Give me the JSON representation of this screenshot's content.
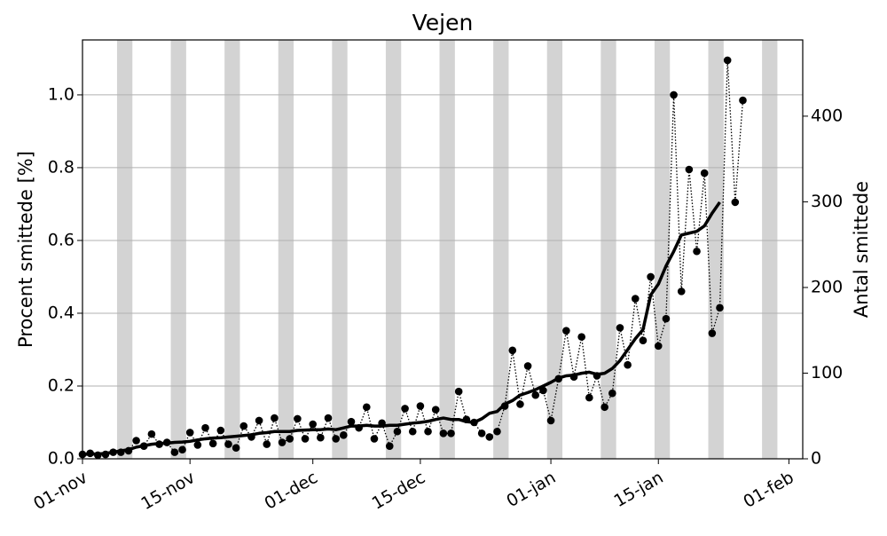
{
  "chart_data": {
    "type": "line",
    "title": "Vejen",
    "y_label": "Procent smittede [%]",
    "y2_label": "Antal smittede",
    "x": [
      0,
      1,
      2,
      3,
      4,
      5,
      6,
      7,
      8,
      9,
      10,
      11,
      12,
      13,
      14,
      15,
      16,
      17,
      18,
      19,
      20,
      21,
      22,
      23,
      24,
      25,
      26,
      27,
      28,
      29,
      30,
      31,
      32,
      33,
      34,
      35,
      36,
      37,
      38,
      39,
      40,
      41,
      42,
      43,
      44,
      45,
      46,
      47,
      48,
      49,
      50,
      51,
      52,
      53,
      54,
      55,
      56,
      57,
      58,
      59,
      60,
      61,
      62,
      63,
      64,
      65,
      66,
      67,
      68,
      69,
      70,
      71,
      72,
      73,
      74,
      75,
      76,
      77,
      78,
      79,
      80,
      81,
      82,
      83,
      84,
      85,
      86
    ],
    "xlim": [
      0,
      93.8
    ],
    "xticks": [
      {
        "value": 0,
        "label": "01-nov"
      },
      {
        "value": 14,
        "label": "15-nov"
      },
      {
        "value": 30,
        "label": "01-dec"
      },
      {
        "value": 44,
        "label": "15-dec"
      },
      {
        "value": 61,
        "label": "01-jan"
      },
      {
        "value": 75,
        "label": "15-jan"
      },
      {
        "value": 92,
        "label": "01-feb"
      }
    ],
    "ylim": [
      0,
      1.151
    ],
    "yticks": [
      {
        "value": 0,
        "label": "0.0"
      },
      0.2,
      0.4,
      0.6,
      0.8,
      {
        "value": 1,
        "label": "1.0"
      }
    ],
    "y2lim": [
      0,
      489
    ],
    "y2ticks": [
      0,
      100,
      200,
      300,
      400
    ],
    "grid": true,
    "shaded_spans": [
      [
        4.5,
        6.5
      ],
      [
        11.5,
        13.5
      ],
      [
        18.5,
        20.5
      ],
      [
        25.5,
        27.5
      ],
      [
        32.5,
        34.5
      ],
      [
        39.5,
        41.5
      ],
      [
        46.5,
        48.5
      ],
      [
        53.5,
        55.5
      ],
      [
        60.5,
        62.5
      ],
      [
        67.5,
        69.5
      ],
      [
        74.5,
        76.5
      ],
      [
        81.5,
        83.5
      ],
      [
        88.5,
        90.5
      ]
    ],
    "shade_color": "#d3d3d3",
    "series": [
      {
        "style": "dotted-markers",
        "color": "#000000",
        "values": [
          0.012,
          0.015,
          0.01,
          0.012,
          0.018,
          0.018,
          0.022,
          0.05,
          0.035,
          0.068,
          0.04,
          0.045,
          0.018,
          0.025,
          0.072,
          0.038,
          0.085,
          0.042,
          0.078,
          0.04,
          0.03,
          0.09,
          0.06,
          0.105,
          0.04,
          0.112,
          0.045,
          0.055,
          0.11,
          0.055,
          0.095,
          0.058,
          0.112,
          0.055,
          0.065,
          0.102,
          0.085,
          0.142,
          0.055,
          0.098,
          0.035,
          0.075,
          0.138,
          0.075,
          0.145,
          0.075,
          0.135,
          0.07,
          0.07,
          0.185,
          0.108,
          0.1,
          0.07,
          0.06,
          0.075,
          0.145,
          0.298,
          0.15,
          0.255,
          0.175,
          0.188,
          0.105,
          0.22,
          0.352,
          0.225,
          0.335,
          0.168,
          0.228,
          0.142,
          0.18,
          0.36,
          0.258,
          0.44,
          0.325,
          0.5,
          0.31,
          0.385,
          1.0,
          0.46,
          0.795,
          0.57,
          0.785,
          0.345,
          0.415,
          1.095,
          0.705,
          0.985
        ]
      },
      {
        "style": "solid",
        "color": "#000000",
        "values": [
          0.012,
          0.013,
          0.013,
          0.015,
          0.018,
          0.022,
          0.025,
          0.032,
          0.036,
          0.04,
          0.042,
          0.043,
          0.045,
          0.046,
          0.048,
          0.052,
          0.055,
          0.057,
          0.058,
          0.06,
          0.062,
          0.064,
          0.066,
          0.07,
          0.072,
          0.075,
          0.075,
          0.075,
          0.078,
          0.079,
          0.08,
          0.08,
          0.082,
          0.08,
          0.085,
          0.09,
          0.09,
          0.092,
          0.09,
          0.09,
          0.092,
          0.092,
          0.095,
          0.098,
          0.1,
          0.103,
          0.108,
          0.112,
          0.108,
          0.108,
          0.102,
          0.1,
          0.11,
          0.125,
          0.13,
          0.15,
          0.16,
          0.175,
          0.182,
          0.19,
          0.2,
          0.21,
          0.222,
          0.228,
          0.23,
          0.235,
          0.238,
          0.232,
          0.235,
          0.248,
          0.27,
          0.3,
          0.33,
          0.355,
          0.45,
          0.48,
          0.53,
          0.57,
          0.615,
          0.62,
          0.625,
          0.64,
          0.675,
          0.705,
          null,
          null,
          null
        ]
      }
    ]
  }
}
